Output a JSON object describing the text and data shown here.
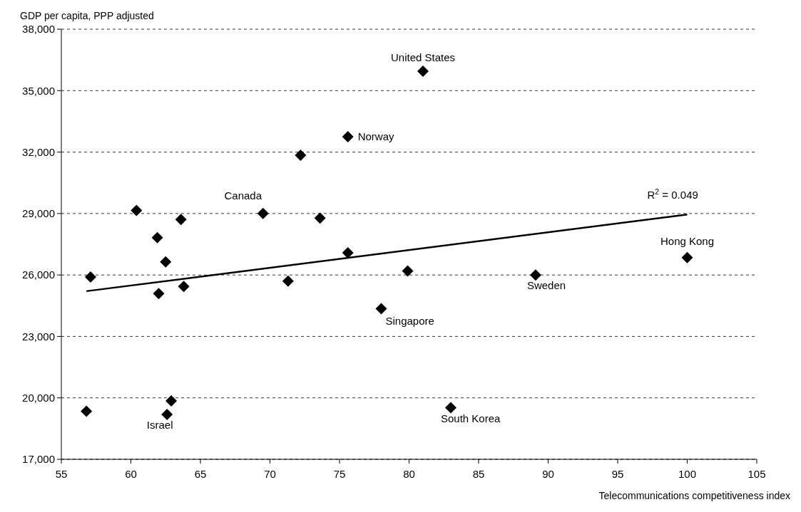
{
  "chart_data": {
    "type": "scatter",
    "xlabel": "Telecommunications competitiveness index",
    "ylabel": "GDP per capita, PPP adjusted",
    "xlim": [
      55,
      105
    ],
    "xticks": [
      55,
      60,
      65,
      70,
      75,
      80,
      85,
      90,
      95,
      100,
      105
    ],
    "ylim": [
      17000,
      38000
    ],
    "yticks": [
      {
        "value": 17000,
        "label": "17,000"
      },
      {
        "value": 20000,
        "label": "20,000"
      },
      {
        "value": 23000,
        "label": "23,000"
      },
      {
        "value": 26000,
        "label": "26,000"
      },
      {
        "value": 29000,
        "label": "29,000"
      },
      {
        "value": 32000,
        "label": "32,000"
      },
      {
        "value": 35000,
        "label": "35,000"
      },
      {
        "value": 38000,
        "label": "38,000"
      }
    ],
    "grid": "y",
    "series": [
      {
        "marker": "diamond",
        "color": "#000000",
        "x": [
          56.8,
          57.1,
          60.4,
          61.9,
          62.0,
          62.5,
          62.6,
          62.9,
          63.6,
          63.8,
          69.5,
          71.3,
          72.2,
          73.6,
          75.6,
          75.6,
          78.0,
          79.9,
          81.0,
          83.0,
          89.1,
          100
        ],
        "values": [
          19350,
          25900,
          29150,
          27820,
          25090,
          26640,
          19190,
          19850,
          28710,
          25440,
          29000,
          25700,
          31850,
          28780,
          32750,
          27080,
          24350,
          26200,
          35950,
          19520,
          26000,
          26850
        ]
      },
      {
        "type": "line",
        "color": "#000000",
        "x": [
          56.8,
          100
        ],
        "values": [
          25210,
          28950
        ]
      }
    ],
    "annotations": [
      {
        "text": "United States",
        "x": 81.0,
        "y": 35950
      },
      {
        "text": "Norway",
        "x": 75.6,
        "y": 32750
      },
      {
        "text": "Canada",
        "x": 69.5,
        "y": 29000
      },
      {
        "text": "Hong Kong",
        "x": 100,
        "y": 26850
      },
      {
        "text": "Sweden",
        "x": 89.1,
        "y": 26000
      },
      {
        "text": "Singapore",
        "x": 78.0,
        "y": 24350
      },
      {
        "text": "South Korea",
        "x": 83.0,
        "y": 19520
      },
      {
        "text": "Israel",
        "x": 62.6,
        "y": 19190
      },
      {
        "text": "R$^{2}$ = 0.049",
        "x": 100,
        "y": 28950
      }
    ]
  }
}
